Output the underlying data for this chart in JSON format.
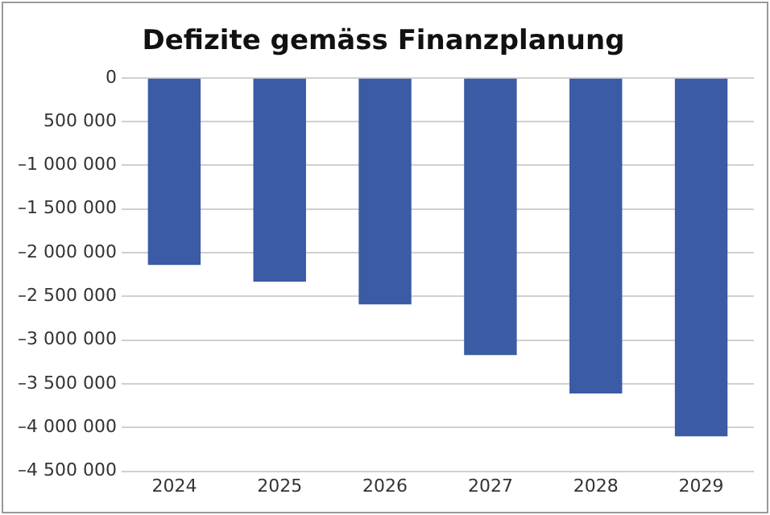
{
  "chart_data": {
    "type": "bar",
    "title": "Defizite gemäss Finanzplanung",
    "categories": [
      "2024",
      "2025",
      "2026",
      "2027",
      "2028",
      "2029"
    ],
    "values": [
      -2140000,
      -2330000,
      -2590000,
      -3170000,
      -3610000,
      -4100000
    ],
    "color": "#3b5ba5",
    "ylim": [
      -4500000,
      0
    ],
    "yticks": [
      {
        "value": 0,
        "label": "0"
      },
      {
        "value": -500000,
        "label": "500 000"
      },
      {
        "value": -1000000,
        "label": "–1 000 000"
      },
      {
        "value": -1500000,
        "label": "–1 500 000"
      },
      {
        "value": -2000000,
        "label": "–2 000 000"
      },
      {
        "value": -2500000,
        "label": "–2 500 000"
      },
      {
        "value": -3000000,
        "label": "–3 000 000"
      },
      {
        "value": -3500000,
        "label": "–3 500 000"
      },
      {
        "value": -4000000,
        "label": "–4 000 000"
      },
      {
        "value": -4500000,
        "label": "–4 500 000"
      }
    ],
    "grid": "y",
    "legend": false
  }
}
